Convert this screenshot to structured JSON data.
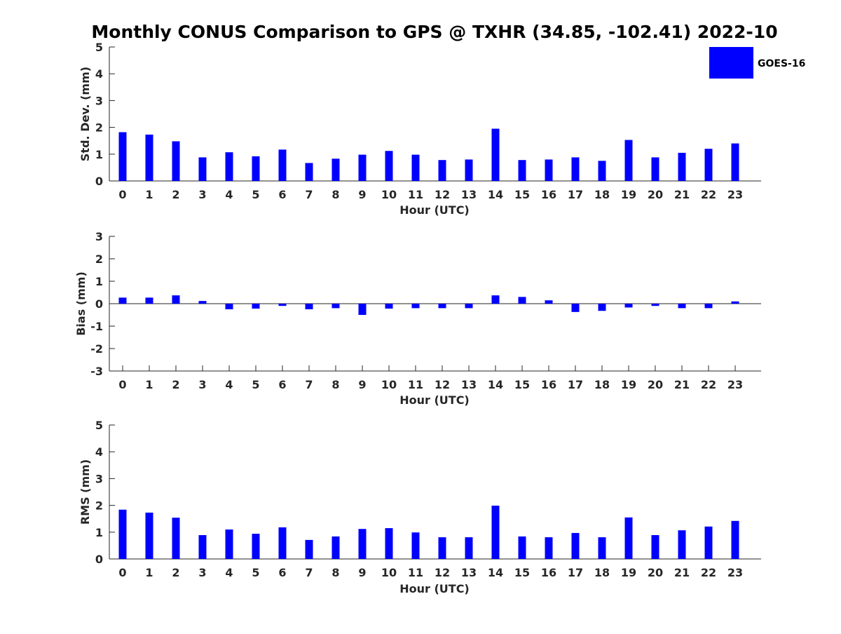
{
  "title": "Monthly CONUS Comparison to GPS @ TXHR (34.85, -102.41) 2022-10",
  "legend": {
    "label": "GOES-16",
    "color": "#0000ff",
    "placement": "top-right"
  },
  "chart_data": [
    {
      "type": "bar",
      "categories": [
        "0",
        "1",
        "2",
        "3",
        "4",
        "5",
        "6",
        "7",
        "8",
        "9",
        "10",
        "11",
        "12",
        "13",
        "14",
        "15",
        "16",
        "17",
        "18",
        "19",
        "20",
        "21",
        "22",
        "23"
      ],
      "values": [
        1.82,
        1.73,
        1.48,
        0.88,
        1.07,
        0.92,
        1.17,
        0.67,
        0.83,
        0.98,
        1.12,
        0.98,
        0.78,
        0.8,
        1.95,
        0.78,
        0.8,
        0.88,
        0.75,
        1.53,
        0.88,
        1.05,
        1.2,
        1.4
      ],
      "xlabel": "Hour (UTC)",
      "ylabel": "Std. Dev. (mm)",
      "ylim": [
        0,
        5
      ],
      "yticks": [
        "0",
        "1",
        "2",
        "3",
        "4",
        "5"
      ],
      "series_name": "GOES-16",
      "color": "#0000ff"
    },
    {
      "type": "bar",
      "categories": [
        "0",
        "1",
        "2",
        "3",
        "4",
        "5",
        "6",
        "7",
        "8",
        "9",
        "10",
        "11",
        "12",
        "13",
        "14",
        "15",
        "16",
        "17",
        "18",
        "19",
        "20",
        "21",
        "22",
        "23"
      ],
      "values": [
        0.27,
        0.27,
        0.37,
        0.12,
        -0.25,
        -0.22,
        -0.1,
        -0.25,
        -0.2,
        -0.5,
        -0.22,
        -0.2,
        -0.2,
        -0.2,
        0.37,
        0.3,
        0.15,
        -0.37,
        -0.32,
        -0.17,
        -0.1,
        -0.2,
        -0.2,
        0.1
      ],
      "xlabel": "Hour (UTC)",
      "ylabel": "Bias (mm)",
      "ylim": [
        -3,
        3
      ],
      "yticks": [
        "-3",
        "-2",
        "-1",
        "0",
        "1",
        "2",
        "3"
      ],
      "series_name": "GOES-16",
      "color": "#0000ff"
    },
    {
      "type": "bar",
      "categories": [
        "0",
        "1",
        "2",
        "3",
        "4",
        "5",
        "6",
        "7",
        "8",
        "9",
        "10",
        "11",
        "12",
        "13",
        "14",
        "15",
        "16",
        "17",
        "18",
        "19",
        "20",
        "21",
        "22",
        "23"
      ],
      "values": [
        1.84,
        1.73,
        1.54,
        0.89,
        1.1,
        0.94,
        1.18,
        0.71,
        0.84,
        1.12,
        1.15,
        0.99,
        0.81,
        0.81,
        1.99,
        0.84,
        0.81,
        0.97,
        0.81,
        1.55,
        0.89,
        1.07,
        1.21,
        1.42
      ],
      "xlabel": "Hour (UTC)",
      "ylabel": "RMS (mm)",
      "ylim": [
        0,
        5
      ],
      "yticks": [
        "0",
        "1",
        "2",
        "3",
        "4",
        "5"
      ],
      "series_name": "GOES-16",
      "color": "#0000ff"
    }
  ]
}
